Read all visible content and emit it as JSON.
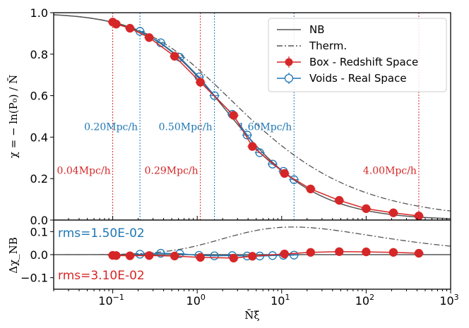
{
  "chart_data": [
    {
      "type": "line",
      "panel": "main",
      "ylabel": "χ = − ln(P₀) / N̄",
      "xscale": "log",
      "xlim": [
        0.02,
        1000
      ],
      "ylim": [
        0.0,
        1.0
      ],
      "yticks": [
        "0.0",
        "0.2",
        "0.4",
        "0.6",
        "0.8",
        "1.0"
      ],
      "legend": {
        "placement": "top-right",
        "entries": [
          "NB",
          "Therm.",
          "Box - Redshift Space",
          "Voids - Real Space"
        ]
      },
      "series": [
        {
          "name": "NB",
          "style": "solid",
          "color": "#555555"
        },
        {
          "name": "Therm.",
          "style": "dashdot",
          "color": "#555555"
        },
        {
          "name": "Box - Redshift Space",
          "color": "#d62728",
          "marker": "filled-circle",
          "x": [
            0.1,
            0.11,
            0.16,
            0.27,
            0.54,
            1.09,
            2.7,
            4.5,
            10.8,
            22,
            48,
            100,
            210,
            420
          ],
          "y": [
            0.955,
            0.945,
            0.925,
            0.88,
            0.79,
            0.665,
            0.505,
            0.355,
            0.225,
            0.15,
            0.095,
            0.055,
            0.035,
            0.02
          ]
        },
        {
          "name": "Voids - Real Space",
          "color": "#1f77b4",
          "marker": "open-circle",
          "x": [
            0.21,
            0.37,
            0.62,
            1.05,
            1.6,
            2.6,
            3.9,
            5.5,
            7.8,
            10.5,
            14.0
          ],
          "y": [
            0.91,
            0.855,
            0.785,
            0.69,
            0.6,
            0.51,
            0.41,
            0.325,
            0.27,
            0.235,
            0.195
          ]
        }
      ],
      "vlines": [
        {
          "x": 0.1,
          "color": "#d62728"
        },
        {
          "x": 1.09,
          "color": "#d62728"
        },
        {
          "x": 420,
          "color": "#d62728"
        },
        {
          "x": 0.21,
          "color": "#1f77b4"
        },
        {
          "x": 1.6,
          "color": "#1f77b4"
        },
        {
          "x": 14.0,
          "color": "#1f77b4"
        }
      ],
      "annotations": [
        {
          "text": "0.20Mpc/h",
          "color": "#1f77b4",
          "x": 0.21,
          "y": 0.45
        },
        {
          "text": "0.50Mpc/h",
          "color": "#1f77b4",
          "x": 1.6,
          "y": 0.45
        },
        {
          "text": "1.60Mpc/h",
          "color": "#1f77b4",
          "x": 14.0,
          "y": 0.45
        },
        {
          "text": "0.04Mpc/h",
          "color": "#d62728",
          "x": 0.1,
          "y": 0.24
        },
        {
          "text": "0.29Mpc/h",
          "color": "#d62728",
          "x": 1.09,
          "y": 0.24
        },
        {
          "text": "4.00Mpc/h",
          "color": "#d62728",
          "x": 420,
          "y": 0.24
        }
      ]
    },
    {
      "type": "line",
      "panel": "residual",
      "xlabel": "N̄ξ̄",
      "ylabel": "Δχ_NB",
      "xscale": "log",
      "xlim": [
        0.02,
        1000
      ],
      "ylim": [
        -0.15,
        0.15
      ],
      "xticks": [
        0.1,
        1,
        10,
        100,
        1000
      ],
      "xtick_bases": [
        "10",
        "10",
        "10",
        "10",
        "10"
      ],
      "xtick_exps": [
        "−1",
        "0",
        "1",
        "2",
        "3"
      ],
      "yticks": [
        "−0.1",
        "0.0",
        "0.1"
      ],
      "series": [
        {
          "name": "Therm.",
          "style": "dashdot",
          "color": "#555555"
        },
        {
          "name": "Box - Redshift Space",
          "color": "#d62728",
          "x": [
            0.1,
            0.11,
            0.16,
            0.27,
            0.54,
            1.09,
            2.7,
            4.5,
            10.8,
            22,
            48,
            100,
            210,
            420
          ],
          "y": [
            -0.003,
            -0.004,
            -0.005,
            -0.004,
            -0.006,
            -0.012,
            -0.015,
            -0.007,
            0.003,
            0.01,
            0.013,
            0.012,
            0.01,
            0.006
          ]
        },
        {
          "name": "Voids - Real Space",
          "color": "#1f77b4",
          "x": [
            0.21,
            0.37,
            0.62,
            1.05,
            1.6,
            2.6,
            3.9,
            5.5,
            7.8,
            10.5,
            14.0
          ],
          "y": [
            0.002,
            0.006,
            0.004,
            -0.003,
            -0.005,
            -0.004,
            -0.006,
            -0.006,
            -0.004,
            -0.003,
            -0.002
          ]
        }
      ],
      "annotations": [
        {
          "text": "rms=1.50E-02",
          "color": "#1f77b4"
        },
        {
          "text": "rms=3.10E-02",
          "color": "#d62728"
        }
      ]
    }
  ]
}
